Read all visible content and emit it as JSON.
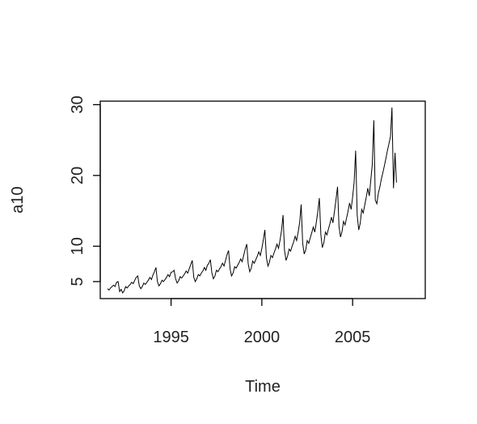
{
  "chart_data": {
    "type": "line",
    "title": "",
    "xlabel": "Time",
    "ylabel": "a10",
    "xlim": [
      1991.1,
      2009.0
    ],
    "ylim": [
      2.6,
      30.5
    ],
    "x_ticks": [
      1995,
      2000,
      2005
    ],
    "x_tick_labels": [
      "1995",
      "2000",
      "2005"
    ],
    "y_ticks": [
      5,
      10,
      20,
      30
    ],
    "y_tick_labels": [
      "5",
      "10",
      "20",
      "30"
    ],
    "grid": false,
    "legend": "none",
    "colors": {
      "line": "#000000",
      "frame": "#000000",
      "text": "#222222"
    },
    "series": [
      {
        "x_start": 1991.5,
        "step": 0.08333333,
        "values": [
          4.0,
          3.8,
          4.1,
          4.3,
          4.5,
          4.3,
          4.9,
          5.0,
          3.6,
          3.9,
          3.4,
          3.7,
          4.3,
          4.1,
          4.4,
          4.6,
          4.9,
          4.7,
          5.2,
          5.6,
          5.8,
          4.4,
          4.0,
          4.3,
          4.8,
          4.6,
          4.9,
          5.2,
          5.6,
          5.3,
          5.9,
          6.4,
          7.0,
          5.0,
          4.4,
          4.7,
          5.2,
          5.0,
          5.3,
          5.6,
          6.0,
          5.7,
          6.3,
          6.4,
          6.6,
          5.4,
          4.8,
          5.1,
          5.7,
          5.5,
          5.8,
          6.1,
          6.5,
          6.2,
          6.8,
          7.4,
          8.0,
          5.6,
          5.0,
          5.4,
          6.0,
          5.8,
          6.2,
          6.5,
          7.0,
          6.6,
          7.3,
          7.6,
          8.1,
          6.2,
          5.4,
          5.8,
          6.6,
          6.4,
          6.8,
          7.1,
          7.6,
          7.2,
          8.0,
          8.8,
          9.4,
          6.8,
          5.8,
          6.2,
          7.1,
          6.9,
          7.3,
          7.7,
          8.2,
          7.8,
          8.7,
          9.6,
          10.3,
          7.5,
          6.4,
          6.9,
          7.9,
          7.6,
          8.1,
          8.6,
          9.2,
          8.7,
          9.7,
          10.9,
          12.3,
          8.4,
          7.2,
          7.7,
          8.7,
          8.4,
          9.0,
          9.6,
          10.3,
          9.7,
          10.8,
          12.2,
          14.4,
          9.4,
          8.0,
          8.6,
          9.6,
          9.3,
          10.0,
          10.6,
          11.4,
          10.8,
          12.0,
          13.4,
          15.9,
          10.4,
          8.9,
          9.5,
          10.8,
          10.4,
          11.2,
          11.9,
          12.7,
          12.0,
          13.4,
          14.9,
          16.8,
          11.6,
          9.8,
          10.5,
          12.0,
          11.6,
          12.4,
          13.2,
          14.1,
          13.3,
          14.9,
          16.6,
          18.4,
          12.8,
          11.3,
          12.1,
          13.5,
          13.0,
          14.0,
          15.0,
          16.1,
          15.2,
          17.0,
          19.0,
          23.5,
          14.4,
          12.3,
          13.2,
          15.2,
          14.7,
          15.8,
          16.9,
          18.2,
          17.1,
          19.3,
          21.6,
          27.8,
          16.5,
          16.0,
          17.5,
          18.4,
          19.5,
          20.4,
          21.4,
          22.4,
          23.5,
          24.5,
          25.5,
          29.6,
          18.2,
          23.2,
          19.0
        ]
      }
    ]
  }
}
